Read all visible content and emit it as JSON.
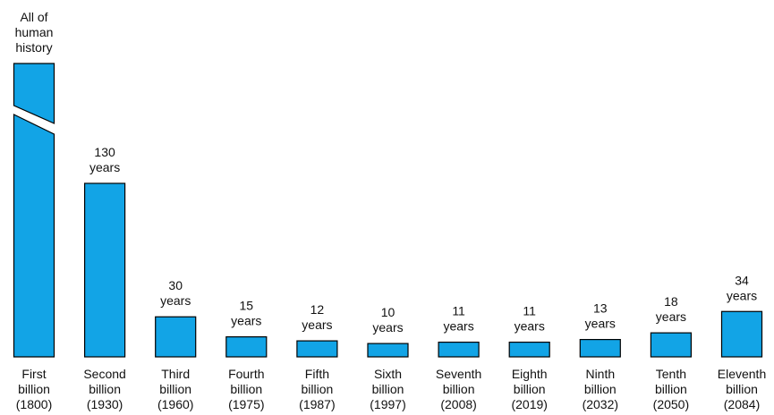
{
  "chart_data": {
    "type": "bar",
    "categories": [
      [
        "First",
        "billion",
        "(1800)"
      ],
      [
        "Second",
        "billion",
        "(1930)"
      ],
      [
        "Third",
        "billion",
        "(1960)"
      ],
      [
        "Fourth",
        "billion",
        "(1975)"
      ],
      [
        "Fifth",
        "billion",
        "(1987)"
      ],
      [
        "Sixth",
        "billion",
        "(1997)"
      ],
      [
        "Seventh",
        "billion",
        "(2008)"
      ],
      [
        "Eighth",
        "billion",
        "(2019)"
      ],
      [
        "Ninth",
        "billion",
        "(2032)"
      ],
      [
        "Tenth",
        "billion",
        "(2050)"
      ],
      [
        "Eleventh",
        "billion",
        "(2084)"
      ]
    ],
    "values": [
      null,
      130,
      30,
      15,
      12,
      10,
      11,
      11,
      13,
      18,
      34
    ],
    "value_labels": [
      [
        "All of",
        "human",
        "history"
      ],
      [
        "130",
        "years"
      ],
      [
        "30",
        "years"
      ],
      [
        "15",
        "years"
      ],
      [
        "12",
        "years"
      ],
      [
        "10",
        "years"
      ],
      [
        "11",
        "years"
      ],
      [
        "11",
        "years"
      ],
      [
        "13",
        "years"
      ],
      [
        "18",
        "years"
      ],
      [
        "34",
        "years"
      ]
    ],
    "color": "#12a4e6"
  }
}
